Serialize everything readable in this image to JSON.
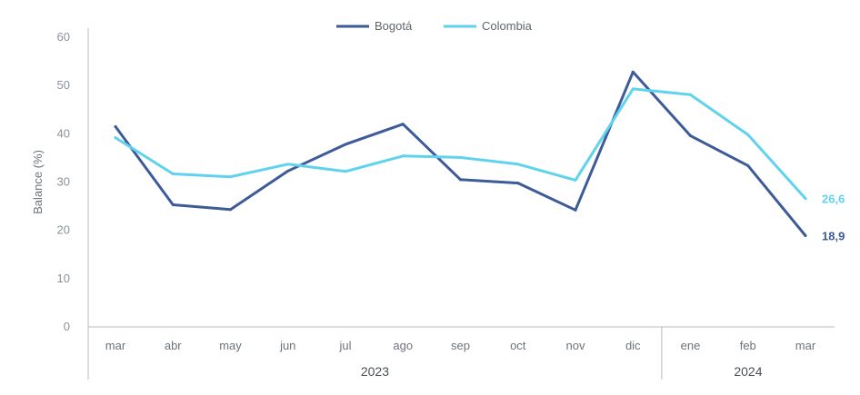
{
  "chart_data": {
    "type": "line",
    "title": "",
    "xlabel": "",
    "ylabel": "Balance (%)",
    "ylim": [
      0,
      60
    ],
    "yticks": [
      0,
      10,
      20,
      30,
      40,
      50,
      60
    ],
    "grid": false,
    "legend_position": "top-center",
    "categories": [
      "mar",
      "abr",
      "may",
      "jun",
      "jul",
      "ago",
      "sep",
      "oct",
      "nov",
      "dic",
      "ene",
      "feb",
      "mar"
    ],
    "year_groups": [
      {
        "label": "2023",
        "start": 0,
        "end": 9
      },
      {
        "label": "2024",
        "start": 10,
        "end": 12
      }
    ],
    "series": [
      {
        "name": "Bogotá",
        "color": "#3d5a99",
        "values": [
          41.5,
          25.3,
          24.3,
          32.3,
          37.8,
          42.0,
          30.5,
          29.8,
          24.2,
          52.8,
          39.6,
          33.4,
          18.9
        ],
        "end_label": "18,9"
      },
      {
        "name": "Colombia",
        "color": "#5fd3ee",
        "values": [
          39.2,
          31.7,
          31.1,
          33.7,
          32.2,
          35.4,
          35.1,
          33.7,
          30.4,
          49.3,
          48.1,
          39.8,
          26.6
        ],
        "end_label": "26,6"
      }
    ]
  }
}
